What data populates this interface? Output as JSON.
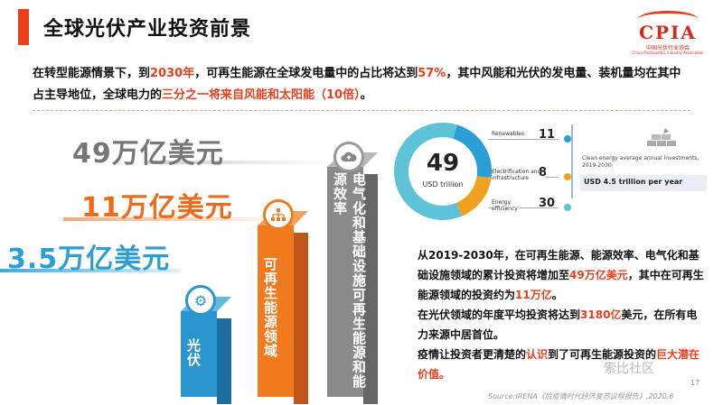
{
  "slide": {
    "title": "全球光伏产业投资前景",
    "page_number": "17",
    "source": "Source:IRENA《后疫情时代经济复苏议程报告》,2020.6",
    "watermark": "索比社区"
  },
  "logo": {
    "mark": "CPIA",
    "name": "中国光伏行业协会",
    "subtitle": "China Photovoltaic Industry Association"
  },
  "intro": {
    "part1": "在转型能源情景下，到",
    "year": "2030年",
    "part2": "，可再生能源在全球发电量中的占比将达到",
    "pct": "57%",
    "part3": "，其中风能和光伏的发电量、装机量均在其中占主导地位，全球电力的",
    "third": "三分之一将来自风能和太阳能（10倍）",
    "part4": "。"
  },
  "chart_data": {
    "type": "bar",
    "categories": [
      "光伏",
      "可再生能源领域",
      "电气化和基础设施、可再生能源和能源效率"
    ],
    "values_label": [
      "3.5万亿美元",
      "11万亿美元",
      "49万亿美元"
    ],
    "values": [
      3.5,
      11,
      49
    ],
    "unit": "万亿美元",
    "bar_colors": [
      "#2a95cf",
      "#f07a1e",
      "#8a8a8a"
    ]
  },
  "columns": [
    {
      "label": "光伏",
      "amount": "3.5万亿美元",
      "icon": "gears-icon",
      "color": "#2a95cf"
    },
    {
      "label": "可再生能源领域",
      "amount": "11万亿美元",
      "icon": "network-icon",
      "color": "#f07a1e"
    },
    {
      "label": "电气化和基础设施可再生能源和能源效率",
      "amount": "49万亿美元",
      "icon": "cloud-upload-icon",
      "color": "#8a8a8a"
    }
  ],
  "donut": {
    "total": "49",
    "unit": "USD trillion",
    "segments": [
      {
        "name": "Renewables",
        "value": 11,
        "color": "#2a9fd6"
      },
      {
        "name": "Electrification and infrastructure",
        "value": 8,
        "color": "#f0a11e"
      },
      {
        "name": "Energy efficiency",
        "value": 30,
        "color": "#5ec3d6"
      }
    ]
  },
  "side_panel": {
    "text": "Clean energy average annual investments, 2019-2030:",
    "value": "USD 4.5 trillion per year"
  },
  "body": {
    "p1_a": "从2019-2030年，在可再生能源、能源效率、电气化和基础设施领域的累计投资将增加至",
    "p1_b": "49万亿美元",
    "p1_c": "，其中在可再生能源领域的投资约为",
    "p1_d": "11万亿",
    "p1_e": "。",
    "p2_a": "在光伏领域的年度平均投资将达到",
    "p2_b": "3180亿",
    "p2_c": "美元，在所有电力来源中居首位。",
    "p3_a": "疫情让投资者更清楚的",
    "p3_b": "认识",
    "p3_c": "到了可再生能源投资的",
    "p3_d": "巨大潜在价值。"
  }
}
